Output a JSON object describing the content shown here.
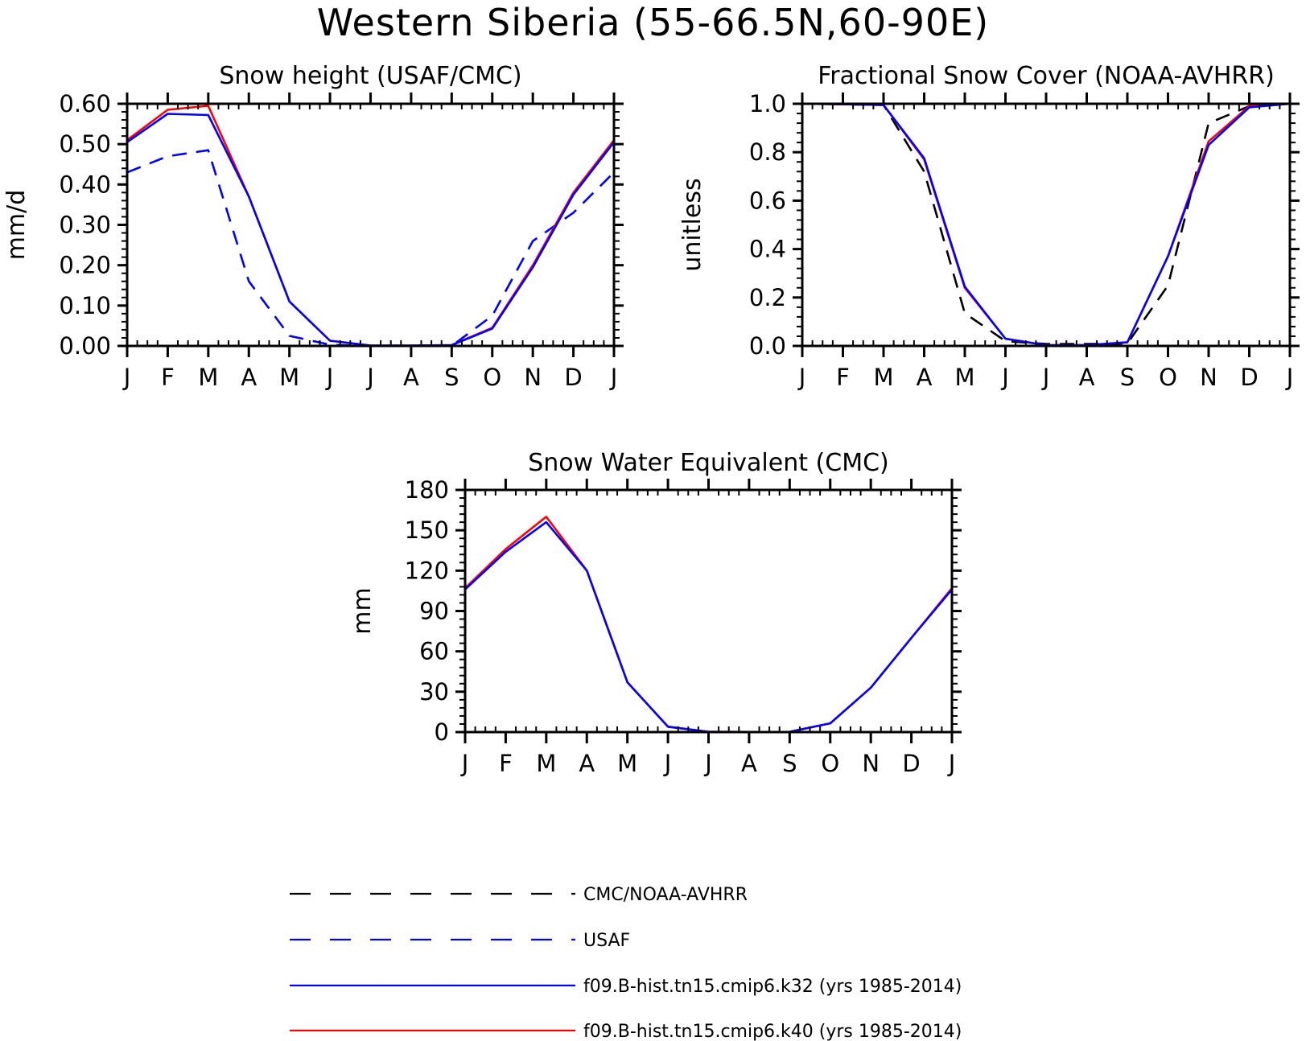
{
  "figure": {
    "title": "Western Siberia (55-66.5N,60-90E)"
  },
  "legend": [
    {
      "label": "CMC/NOAA-AVHRR",
      "color": "#000000",
      "dash": true
    },
    {
      "label": "USAF",
      "color": "#0000ff",
      "dash": true
    },
    {
      "label": "f09.B-hist.tn15.cmip6.k32 (yrs 1985-2014)",
      "color": "#0000ff",
      "dash": false
    },
    {
      "label": "f09.B-hist.tn15.cmip6.k40 (yrs 1985-2014)",
      "color": "#ff0000",
      "dash": false
    }
  ],
  "chart_data": [
    {
      "type": "line",
      "title": "Snow height (USAF/CMC)",
      "ylabel": "mm/d",
      "xlabel": "",
      "categories": [
        "J",
        "F",
        "M",
        "A",
        "M",
        "J",
        "J",
        "A",
        "S",
        "O",
        "N",
        "D",
        "J"
      ],
      "ylim": [
        0,
        0.6
      ],
      "yticks": [
        "0.00",
        "0.10",
        "0.20",
        "0.30",
        "0.40",
        "0.50",
        "0.60"
      ],
      "grid": false,
      "series": [
        {
          "name": "CMC/NOAA-AVHRR",
          "color": "#000000",
          "dash": true,
          "values": [
            0,
            0,
            0,
            0,
            0,
            0,
            0,
            0,
            0,
            0,
            0,
            0,
            0
          ]
        },
        {
          "name": "USAF",
          "color": "#0000ff",
          "dash": true,
          "values": [
            0.43,
            0.47,
            0.485,
            0.16,
            0.025,
            0.003,
            0,
            0,
            0,
            0.075,
            0.26,
            0.33,
            0.43
          ]
        },
        {
          "name": "f09.B-hist.tn15.cmip6.k40 (yrs 1985-2014)",
          "color": "#ff0000",
          "dash": false,
          "values": [
            0.51,
            0.585,
            0.595,
            0.37,
            0.11,
            0.013,
            0.001,
            0.001,
            0.002,
            0.045,
            0.2,
            0.38,
            0.51
          ]
        },
        {
          "name": "f09.B-hist.tn15.cmip6.k32 (yrs 1985-2014)",
          "color": "#0000ff",
          "dash": false,
          "values": [
            0.505,
            0.575,
            0.572,
            0.37,
            0.11,
            0.013,
            0.001,
            0.001,
            0.002,
            0.043,
            0.195,
            0.375,
            0.505
          ]
        }
      ]
    },
    {
      "type": "line",
      "title": "Fractional Snow Cover (NOAA-AVHRR)",
      "ylabel": "unitless",
      "xlabel": "",
      "categories": [
        "J",
        "F",
        "M",
        "A",
        "M",
        "J",
        "J",
        "A",
        "S",
        "O",
        "N",
        "D",
        "J"
      ],
      "ylim": [
        0,
        1.0
      ],
      "yticks": [
        "0.0",
        "0.2",
        "0.4",
        "0.6",
        "0.8",
        "1.0"
      ],
      "grid": false,
      "series": [
        {
          "name": "CMC/NOAA-AVHRR",
          "color": "#000000",
          "dash": true,
          "values": [
            1.0,
            0.998,
            0.995,
            0.72,
            0.135,
            0.02,
            0.008,
            0.008,
            0.01,
            0.25,
            0.92,
            0.99,
            1.0
          ]
        },
        {
          "name": "f09.B-hist.tn15.cmip6.k40 (yrs 1985-2014)",
          "color": "#ff0000",
          "dash": false,
          "values": [
            1.0,
            0.998,
            0.995,
            0.77,
            0.24,
            0.03,
            0.003,
            0.003,
            0.015,
            0.37,
            0.845,
            0.99,
            1.0
          ]
        },
        {
          "name": "f09.B-hist.tn15.cmip6.k32 (yrs 1985-2014)",
          "color": "#0000ff",
          "dash": false,
          "values": [
            1.0,
            0.998,
            0.995,
            0.775,
            0.245,
            0.03,
            0.003,
            0.003,
            0.015,
            0.37,
            0.83,
            0.985,
            1.0
          ]
        }
      ]
    },
    {
      "type": "line",
      "title": "Snow Water Equivalent (CMC)",
      "ylabel": "mm",
      "xlabel": "",
      "categories": [
        "J",
        "F",
        "M",
        "A",
        "M",
        "J",
        "J",
        "A",
        "S",
        "O",
        "N",
        "D",
        "J"
      ],
      "ylim": [
        0,
        180
      ],
      "yticks": [
        "0",
        "30",
        "60",
        "90",
        "120",
        "150",
        "180"
      ],
      "grid": false,
      "series": [
        {
          "name": "CMC/NOAA-AVHRR",
          "color": "#000000",
          "dash": true,
          "values": [
            0,
            0,
            0,
            0,
            0,
            0,
            0,
            0,
            0,
            0,
            0,
            0,
            0
          ]
        },
        {
          "name": "f09.B-hist.tn15.cmip6.k40 (yrs 1985-2014)",
          "color": "#ff0000",
          "dash": false,
          "values": [
            107,
            136,
            160,
            120,
            37,
            4,
            0.2,
            0.1,
            0.2,
            6.5,
            33,
            70,
            107
          ]
        },
        {
          "name": "f09.B-hist.tn15.cmip6.k32 (yrs 1985-2014)",
          "color": "#0000ff",
          "dash": false,
          "values": [
            106,
            134,
            156,
            120,
            37,
            4,
            0.2,
            0.1,
            0.2,
            6.5,
            33,
            70,
            106
          ]
        }
      ]
    }
  ]
}
